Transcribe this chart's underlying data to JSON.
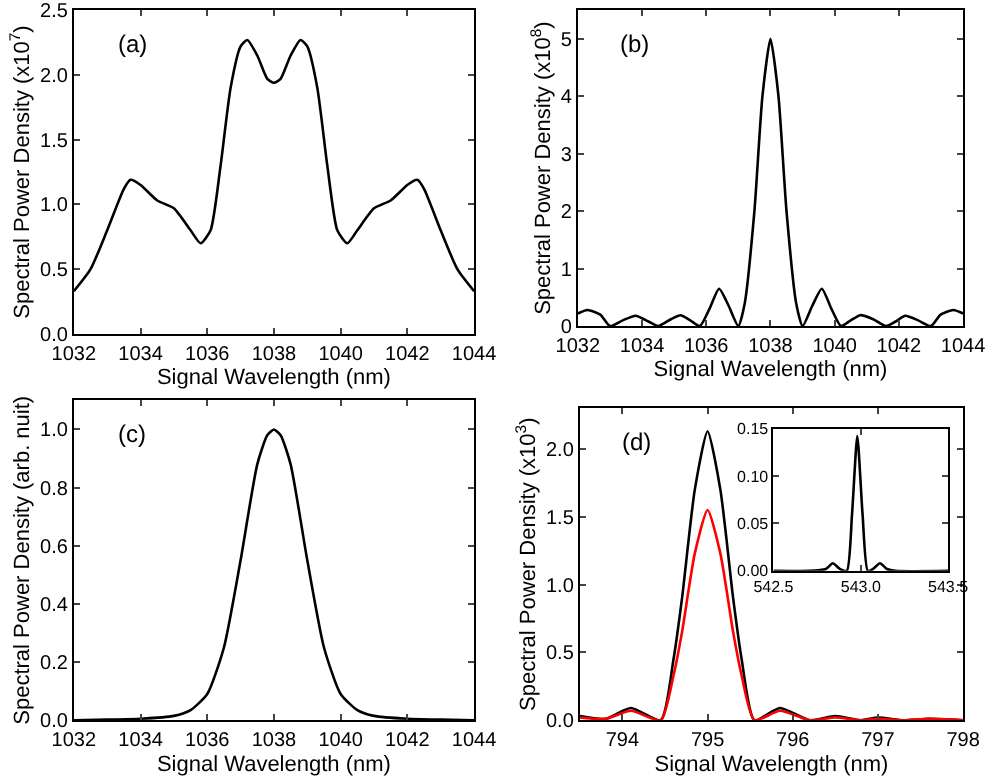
{
  "chart_data": [
    {
      "type": "line",
      "annotations": [
        "(a)"
      ],
      "xlabel": "Signal Wavelength (nm)",
      "ylabel": "Spectral Power Density (x10$^{7}$)",
      "xlim": [
        1032,
        1044
      ],
      "xticks": [
        1032,
        1034,
        1036,
        1038,
        1040,
        1042,
        1044
      ],
      "ylim": [
        0,
        2.5
      ],
      "yticks": [
        {
          "value": 0,
          "label": "0.0"
        },
        0.5,
        {
          "value": 1,
          "label": "1.0"
        },
        1.5,
        {
          "value": 2,
          "label": "2.0"
        },
        2.5
      ],
      "grid": false,
      "series": [
        {
          "color": "#000000",
          "x": [
            1032,
            1032.5,
            1033,
            1033.5,
            1033.7,
            1034,
            1034.5,
            1035,
            1035.5,
            1035.8,
            1036.1,
            1036.4,
            1036.7,
            1037,
            1037.2,
            1037.5,
            1037.8,
            1038,
            1038.2,
            1038.5,
            1038.8,
            1039,
            1039.3,
            1039.6,
            1039.9,
            1040.2,
            1040.5,
            1041,
            1041.5,
            1042,
            1042.3,
            1042.5,
            1043,
            1043.5,
            1044
          ],
          "values": [
            0.33,
            0.5,
            0.8,
            1.12,
            1.19,
            1.15,
            1.03,
            0.97,
            0.8,
            0.7,
            0.8,
            1.3,
            1.9,
            2.22,
            2.27,
            2.15,
            1.97,
            1.94,
            1.97,
            2.15,
            2.27,
            2.22,
            1.9,
            1.3,
            0.8,
            0.7,
            0.8,
            0.97,
            1.03,
            1.15,
            1.19,
            1.12,
            0.8,
            0.5,
            0.33
          ]
        }
      ]
    },
    {
      "type": "line",
      "annotations": [
        "(b)"
      ],
      "xlabel": "Signal Wavelength (nm)",
      "ylabel": "Spectral Power Density (x10$^{8}$)",
      "xlim": [
        1032,
        1044
      ],
      "xticks": [
        1032,
        1034,
        1036,
        1038,
        1040,
        1042,
        1044
      ],
      "ylim": [
        0,
        5.5
      ],
      "yticks": [
        0,
        1,
        2,
        3,
        4,
        5
      ],
      "grid": false,
      "series": [
        {
          "color": "#000000",
          "x": [
            1032,
            1032.3,
            1032.7,
            1033,
            1033.4,
            1033.8,
            1034.2,
            1034.5,
            1034.9,
            1035.2,
            1035.5,
            1035.8,
            1036.1,
            1036.4,
            1036.7,
            1037,
            1037.2,
            1037.5,
            1037.75,
            1038,
            1038.25,
            1038.5,
            1038.8,
            1039,
            1039.3,
            1039.6,
            1039.9,
            1040.2,
            1040.5,
            1040.8,
            1041.2,
            1041.6,
            1041.9,
            1042.2,
            1042.6,
            1043,
            1043.3,
            1043.7,
            1044
          ],
          "values": [
            0.22,
            0.28,
            0.2,
            0,
            0.1,
            0.18,
            0.08,
            0,
            0.12,
            0.19,
            0.1,
            0,
            0.3,
            0.65,
            0.35,
            0,
            0.4,
            2.0,
            4.0,
            5.0,
            4.0,
            2.0,
            0.4,
            0,
            0.35,
            0.65,
            0.3,
            0,
            0.1,
            0.19,
            0.12,
            0,
            0.08,
            0.18,
            0.1,
            0,
            0.2,
            0.28,
            0.22
          ]
        }
      ]
    },
    {
      "type": "line",
      "annotations": [
        "(c)"
      ],
      "xlabel": "Signal Wavelength (nm)",
      "ylabel": "Spectral Power Density (arb. nuit)",
      "xlim": [
        1032,
        1044
      ],
      "xticks": [
        1032,
        1034,
        1036,
        1038,
        1040,
        1042,
        1044
      ],
      "ylim": [
        0,
        1.1
      ],
      "yticks": [
        {
          "value": 0,
          "label": "0.0"
        },
        0.2,
        0.4,
        0.6,
        0.8,
        {
          "value": 1,
          "label": "1.0"
        }
      ],
      "grid": false,
      "series": [
        {
          "color": "#000000",
          "x": [
            1032,
            1033,
            1034,
            1035,
            1035.5,
            1036,
            1036.5,
            1037,
            1037.5,
            1037.8,
            1038,
            1038.2,
            1038.5,
            1039,
            1039.5,
            1040,
            1040.5,
            1041,
            1042,
            1043,
            1044
          ],
          "values": [
            0,
            0.002,
            0.005,
            0.015,
            0.035,
            0.09,
            0.25,
            0.55,
            0.88,
            0.98,
            1.0,
            0.98,
            0.88,
            0.55,
            0.25,
            0.09,
            0.035,
            0.015,
            0.005,
            0.002,
            0
          ]
        }
      ]
    },
    {
      "type": "line",
      "annotations": [
        "(d)"
      ],
      "xlabel": "Signal Wavelength (nm)",
      "ylabel": "Spectral Power Density (x10$^{3}$)",
      "xlim": [
        793.5,
        798
      ],
      "xticks": [
        794,
        795,
        796,
        797,
        798
      ],
      "ylim": [
        0,
        2.3
      ],
      "yticks": [
        {
          "value": 0,
          "label": "0.0"
        },
        0.5,
        {
          "value": 1,
          "label": "1.0"
        },
        1.5,
        {
          "value": 2,
          "label": "2.0"
        }
      ],
      "grid": false,
      "series": [
        {
          "color": "#000000",
          "x": [
            793.5,
            793.8,
            794.1,
            794.45,
            794.6,
            794.7,
            794.85,
            795,
            795.15,
            795.3,
            795.4,
            795.55,
            795.85,
            796.2,
            796.5,
            796.8,
            797,
            797.3,
            797.6,
            798
          ],
          "values": [
            0.03,
            0.01,
            0.09,
            0,
            0.45,
            0.9,
            1.7,
            2.13,
            1.7,
            0.9,
            0.45,
            0,
            0.09,
            0,
            0.03,
            0,
            0.02,
            0,
            0.01,
            0
          ]
        },
        {
          "color": "#ff0000",
          "x": [
            793.5,
            793.8,
            794.1,
            794.45,
            794.6,
            794.7,
            794.85,
            795,
            795.15,
            795.3,
            795.4,
            795.55,
            795.85,
            796.2,
            796.5,
            796.8,
            797,
            797.3,
            797.6,
            798
          ],
          "values": [
            0.02,
            0.01,
            0.07,
            0,
            0.33,
            0.65,
            1.23,
            1.55,
            1.23,
            0.65,
            0.33,
            0,
            0.07,
            0,
            0.02,
            0,
            0.01,
            0,
            0.01,
            0
          ]
        }
      ]
    },
    {
      "type": "line",
      "xlim": [
        542.5,
        543.5
      ],
      "xticks": [
        542.5,
        {
          "value": 543,
          "label": "543.0"
        },
        543.5
      ],
      "ylim": [
        0,
        0.15
      ],
      "yticks": [
        {
          "value": 0,
          "label": "0.00"
        },
        0.05,
        {
          "value": 0.1,
          "label": "0.10"
        },
        0.15
      ],
      "grid": false,
      "series": [
        {
          "color": "#000000",
          "x": [
            542.5,
            542.7,
            542.8,
            542.84,
            542.88,
            542.92,
            542.95,
            542.98,
            543.01,
            543.04,
            543.07,
            543.11,
            543.15,
            543.2,
            543.5
          ],
          "values": [
            0,
            0,
            0.002,
            0.008,
            0.002,
            0,
            0.06,
            0.142,
            0.06,
            0,
            0.002,
            0.008,
            0.002,
            0,
            0
          ]
        }
      ]
    }
  ]
}
